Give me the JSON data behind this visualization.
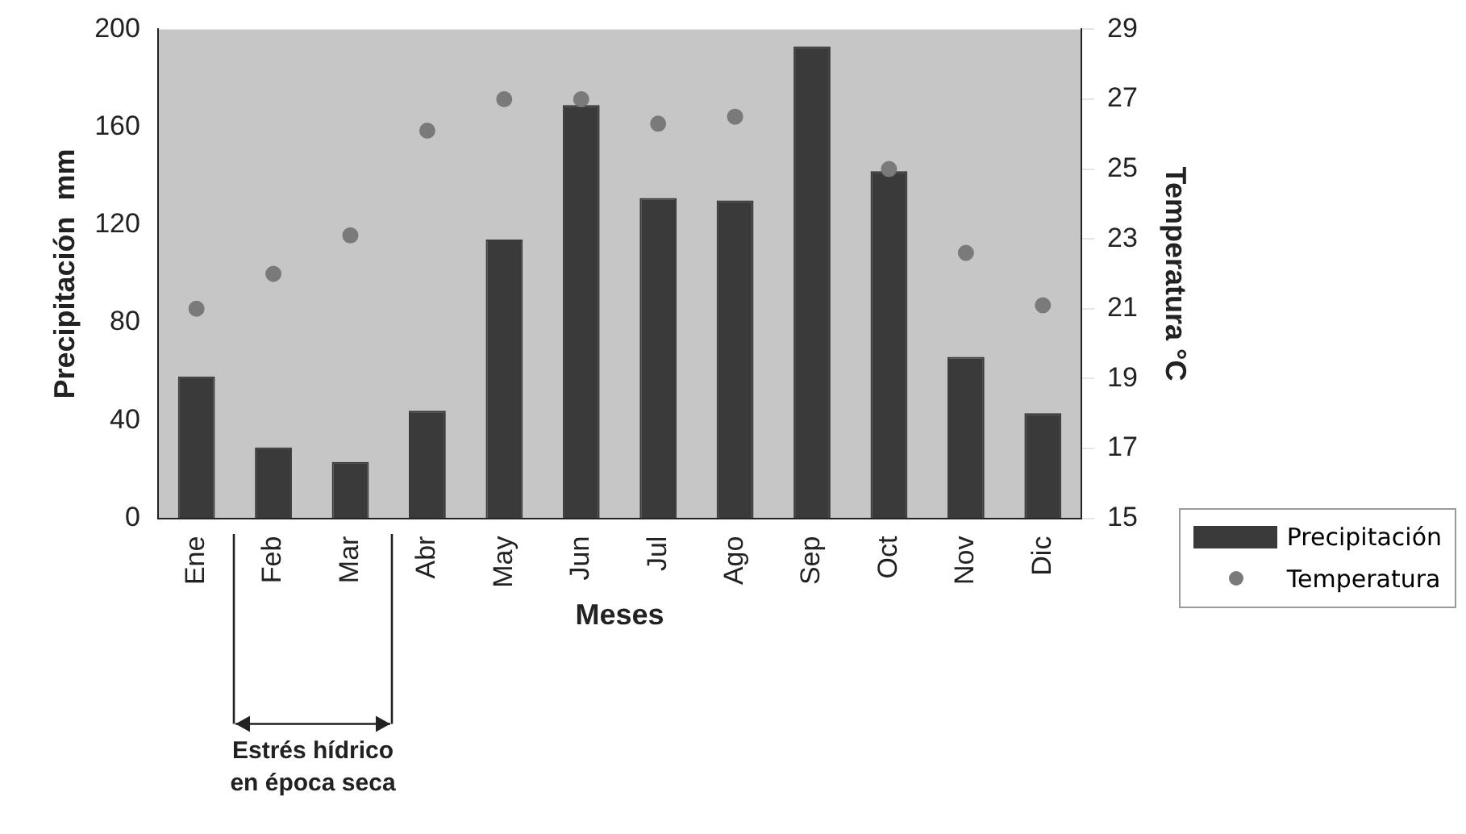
{
  "chart_data": {
    "type": "bar",
    "xlabel": "Meses",
    "ylabel": "Precipitación  mm",
    "y2label": "Temperatura °C",
    "categories": [
      "Ene",
      "Feb",
      "Mar",
      "Abr",
      "May",
      "Jun",
      "Jul",
      "Ago",
      "Sep",
      "Oct",
      "Nov",
      "Dic"
    ],
    "series": [
      {
        "name": "Precipitación",
        "color": "#3a3a3a",
        "values": [
          58,
          29,
          23,
          44,
          114,
          169,
          131,
          130,
          193,
          142,
          66,
          43
        ]
      },
      {
        "name": "Temperatura",
        "type": "scatter",
        "axis": "y2",
        "color": "#7a7a7a",
        "values": [
          21.0,
          22.0,
          23.1,
          26.1,
          27.0,
          27.0,
          26.3,
          26.5,
          null,
          25.0,
          22.6,
          21.1
        ]
      }
    ],
    "ylim": [
      0,
      200
    ],
    "yticks": [
      0,
      40,
      80,
      120,
      160,
      200
    ],
    "y2lim": [
      15,
      29
    ],
    "y2ticks": [
      15,
      17,
      19,
      21,
      23,
      25,
      27,
      29
    ],
    "grid": false,
    "legend": "bottom right",
    "marker": "circle",
    "annotations": [
      "Estrés hídrico\nen época seca"
    ]
  }
}
